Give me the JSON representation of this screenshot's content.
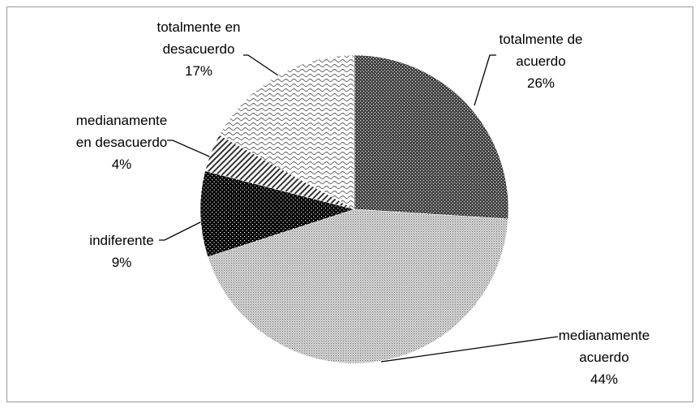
{
  "chart_data": {
    "type": "pie",
    "categories": [
      "totalmente de acuerdo",
      "medianamente acuerdo",
      "indiferente",
      "medianamente en desacuerdo",
      "totalmente en desacuerdo"
    ],
    "values": [
      26,
      44,
      9,
      4,
      17
    ],
    "value_labels": [
      "26%",
      "44%",
      "9%",
      "4%",
      "17%"
    ]
  }
}
